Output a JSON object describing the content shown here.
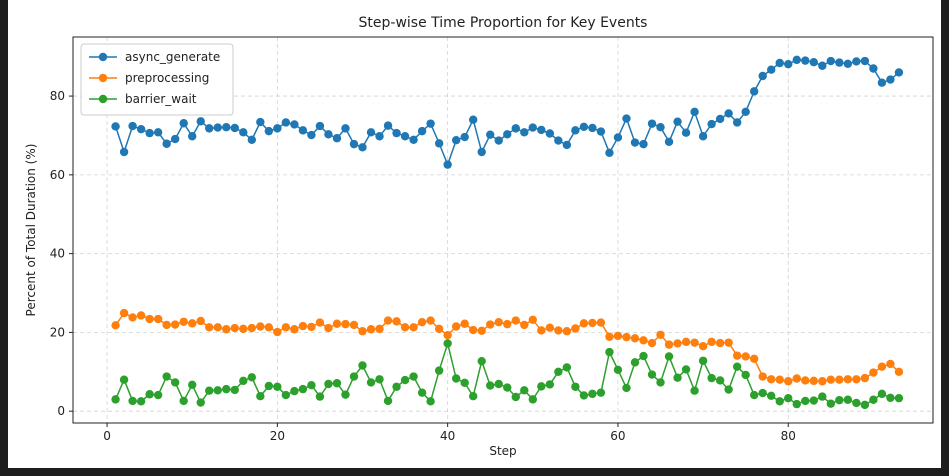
{
  "chart_data": {
    "type": "line",
    "title": "Step-wise Time Proportion for Key Events",
    "xlabel": "Step",
    "ylabel": "Percent of Total Duration (%)",
    "xlim": [
      -4,
      97
    ],
    "ylim": [
      -3,
      95
    ],
    "xticks": [
      0,
      20,
      40,
      60,
      80
    ],
    "yticks": [
      0,
      20,
      40,
      60,
      80
    ],
    "grid": true,
    "legend_position": "top-left",
    "x": [
      1,
      2,
      3,
      4,
      5,
      6,
      7,
      8,
      9,
      10,
      11,
      12,
      13,
      14,
      15,
      16,
      17,
      18,
      19,
      20,
      21,
      22,
      23,
      24,
      25,
      26,
      27,
      28,
      29,
      30,
      31,
      32,
      33,
      34,
      35,
      36,
      37,
      38,
      39,
      40,
      41,
      42,
      43,
      44,
      45,
      46,
      47,
      48,
      49,
      50,
      51,
      52,
      53,
      54,
      55,
      56,
      57,
      58,
      59,
      60,
      61,
      62,
      63,
      64,
      65,
      66,
      67,
      68,
      69,
      70,
      71,
      72,
      73,
      74,
      75,
      76,
      77,
      78,
      79,
      80,
      81,
      82,
      83,
      84,
      85,
      86,
      87,
      88,
      89,
      90,
      91,
      92,
      93
    ],
    "series": [
      {
        "name": "async_generate",
        "color": "#1f77b4",
        "values": [
          72.3,
          65.8,
          72.4,
          71.6,
          70.6,
          70.8,
          67.9,
          69.1,
          73.1,
          69.8,
          73.6,
          71.8,
          72.0,
          72.1,
          71.9,
          70.8,
          68.9,
          73.4,
          71.1,
          71.8,
          73.3,
          72.8,
          71.3,
          70.1,
          72.4,
          70.3,
          69.3,
          71.8,
          67.8,
          67.0,
          70.8,
          69.8,
          72.5,
          70.6,
          69.8,
          68.9,
          71.1,
          73.0,
          68.0,
          62.6,
          68.8,
          69.6,
          74.0,
          65.8,
          70.2,
          68.7,
          70.3,
          71.8,
          70.8,
          72.0,
          71.4,
          70.5,
          68.7,
          67.6,
          71.3,
          72.2,
          71.9,
          71.0,
          65.6,
          69.5,
          74.3,
          68.2,
          67.8,
          73.0,
          72.1,
          68.4,
          73.5,
          70.7,
          76.0,
          69.8,
          72.9,
          74.2,
          75.6,
          73.3,
          76.0,
          81.2,
          85.1,
          86.7,
          88.4,
          88.1,
          89.2,
          89.0,
          88.6,
          87.7,
          88.9,
          88.5,
          88.2,
          88.8,
          88.9,
          87.0,
          83.4,
          84.2,
          86.0
        ]
      },
      {
        "name": "preprocessing",
        "color": "#ff7f0e",
        "values": [
          21.8,
          24.9,
          23.8,
          24.3,
          23.4,
          23.4,
          21.9,
          22.0,
          22.7,
          22.3,
          22.9,
          21.3,
          21.3,
          20.8,
          21.1,
          20.9,
          21.1,
          21.5,
          21.3,
          20.1,
          21.3,
          20.8,
          21.6,
          21.4,
          22.5,
          21.1,
          22.2,
          22.1,
          21.9,
          20.3,
          20.8,
          20.9,
          23.0,
          22.8,
          21.3,
          21.3,
          22.6,
          23.0,
          20.9,
          19.3,
          21.5,
          22.2,
          20.6,
          20.4,
          22.0,
          22.6,
          22.1,
          23.0,
          21.9,
          23.2,
          20.5,
          21.2,
          20.5,
          20.3,
          21.0,
          22.3,
          22.4,
          22.5,
          18.9,
          19.1,
          18.8,
          18.5,
          18.0,
          17.3,
          19.4,
          16.9,
          17.2,
          17.6,
          17.4,
          16.5,
          17.6,
          17.3,
          17.4,
          14.1,
          13.9,
          13.3,
          8.8,
          8.1,
          8.0,
          7.6,
          8.3,
          7.8,
          7.7,
          7.6,
          8.0,
          8.0,
          8.1,
          8.1,
          8.4,
          9.8,
          11.3,
          12.0,
          10.0
        ]
      },
      {
        "name": "barrier_wait",
        "color": "#2ca02c",
        "values": [
          3.0,
          8.0,
          2.6,
          2.5,
          4.3,
          4.1,
          8.8,
          7.3,
          2.6,
          6.7,
          2.2,
          5.2,
          5.3,
          5.6,
          5.4,
          7.7,
          8.6,
          3.8,
          6.4,
          6.2,
          4.1,
          5.1,
          5.6,
          6.6,
          3.7,
          6.9,
          7.1,
          4.2,
          8.8,
          11.6,
          7.3,
          8.1,
          2.6,
          6.2,
          7.9,
          8.8,
          4.7,
          2.5,
          10.3,
          17.2,
          8.3,
          7.2,
          3.8,
          12.7,
          6.5,
          6.9,
          6.0,
          3.6,
          5.3,
          3.0,
          6.3,
          6.8,
          10.0,
          11.1,
          6.2,
          4.0,
          4.4,
          4.7,
          15.0,
          10.5,
          5.9,
          12.4,
          14.0,
          9.3,
          7.3,
          13.9,
          8.5,
          10.6,
          5.2,
          12.8,
          8.4,
          7.8,
          5.5,
          11.3,
          9.2,
          4.1,
          4.6,
          3.9,
          2.5,
          3.3,
          1.8,
          2.6,
          2.7,
          3.7,
          1.9,
          2.8,
          2.9,
          2.1,
          1.6,
          2.9,
          4.4,
          3.4,
          3.3
        ]
      }
    ]
  }
}
